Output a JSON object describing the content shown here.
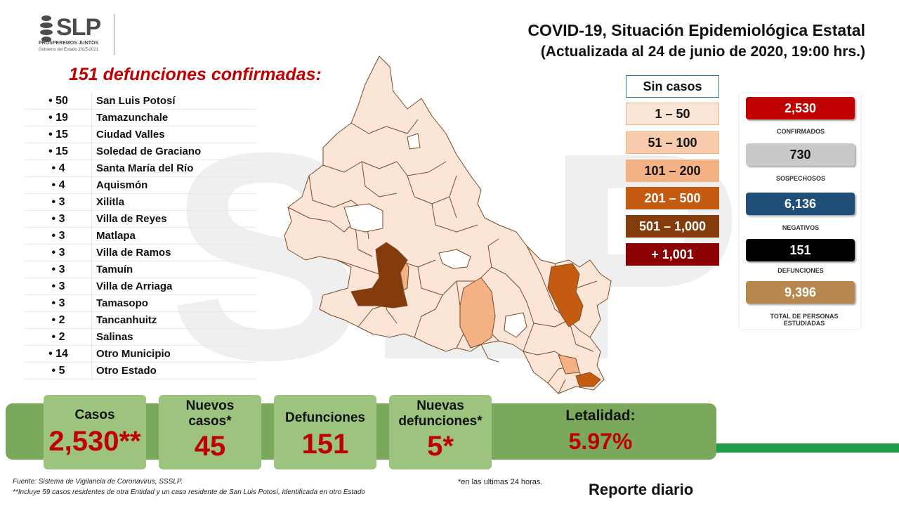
{
  "logo": {
    "text": "SLP",
    "slogan": "PROSPEREMOS JUNTOS",
    "subtitle": "Gobierno del Estado 2015-2021"
  },
  "header": {
    "title": "COVID-19, Situación Epidemiológica Estatal",
    "subtitle": "(Actualizada al 24 de junio de 2020, 19:00 hrs.)"
  },
  "deaths_heading": "151 defunciones confirmadas:",
  "municipalities": [
    {
      "count": "• 50",
      "name": "San Luis Potosí"
    },
    {
      "count": "• 19",
      "name": "Tamazunchale"
    },
    {
      "count": "• 15",
      "name": "Ciudad Valles"
    },
    {
      "count": "• 15",
      "name": "Soledad de Graciano"
    },
    {
      "count": "• 4",
      "name": "Santa María del Río"
    },
    {
      "count": "• 4",
      "name": "Aquismón"
    },
    {
      "count": "• 3",
      "name": "Xilitla"
    },
    {
      "count": "• 3",
      "name": "Villa de Reyes"
    },
    {
      "count": "• 3",
      "name": "Matlapa"
    },
    {
      "count": "• 3",
      "name": "Villa de Ramos"
    },
    {
      "count": "• 3",
      "name": "Tamuín"
    },
    {
      "count": "• 3",
      "name": "Villa de Arriaga"
    },
    {
      "count": "• 3",
      "name": "Tamasopo"
    },
    {
      "count": "• 2",
      "name": "Tancanhuitz"
    },
    {
      "count": "• 2",
      "name": "Salinas"
    },
    {
      "count": "• 14",
      "name": "Otro Municipio"
    },
    {
      "count": "• 5",
      "name": "Otro Estado"
    }
  ],
  "legend": [
    {
      "label": "Sin casos",
      "bg": "#ffffff",
      "fg": "#111111",
      "border": "#2e75b6"
    },
    {
      "label": "1 – 50",
      "bg": "#fbe5d6",
      "fg": "#111111",
      "border": "#f4b183"
    },
    {
      "label": "51 – 100",
      "bg": "#f8cbad",
      "fg": "#111111",
      "border": "#f4b183"
    },
    {
      "label": "101 – 200",
      "bg": "#f4b183",
      "fg": "#111111",
      "border": "#f4b183"
    },
    {
      "label": "201 – 500",
      "bg": "#c55a11",
      "fg": "#ffffff",
      "border": "#c55a11"
    },
    {
      "label": "501 – 1,000",
      "bg": "#843c0c",
      "fg": "#ffffff",
      "border": "#843c0c"
    },
    {
      "label": "+ 1,001",
      "bg": "#8b0000",
      "fg": "#ffffff",
      "border": "#8b0000"
    }
  ],
  "stats": [
    {
      "value": "2,530",
      "label": "CONFIRMADOS",
      "bg": "#c00000",
      "fg": "#ffffff"
    },
    {
      "value": "730",
      "label": "SOSPECHOSOS",
      "bg": "#c9c9c9",
      "fg": "#111111"
    },
    {
      "value": "6,136",
      "label": "NEGATIVOS",
      "bg": "#1f4e79",
      "fg": "#ffffff"
    },
    {
      "value": "151",
      "label": "DEFUNCIONES",
      "bg": "#000000",
      "fg": "#ffffff"
    },
    {
      "value": "9,396",
      "label": "TOTAL DE PERSONAS ESTUDIADAS",
      "bg": "#b8874e",
      "fg": "#ffffff"
    }
  ],
  "summary": {
    "casos_label": "Casos",
    "casos_value": "2,530**",
    "nuevos_label": "Nuevos casos*",
    "nuevos_value": "45",
    "defunciones_label": "Defunciones",
    "defunciones_value": "151",
    "nuevas_def_label": "Nuevas defunciones*",
    "nuevas_def_value": "5*",
    "letalidad_label": "Letalidad:",
    "letalidad_value": "5.97%"
  },
  "footer": {
    "source": "Fuente: Sistema de Vigilancia  de Coronavirus, SSSLP.",
    "note": "**Incluye 59 casos residentes de otra Entidad y un caso residente de San Luis Potosí, identificada  en otro Estado",
    "last24": "*en las ultimas 24 horas.",
    "report": "Reporte diario"
  }
}
